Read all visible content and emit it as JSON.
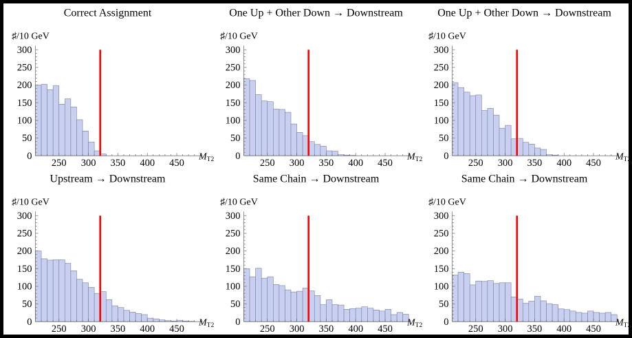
{
  "figure": {
    "background": "#ffffff",
    "frame_color": "#000000",
    "bar_fill": "#c9cfee",
    "bar_edge": "#767fa9",
    "marker_line_color": "#ff0000",
    "axis_color": "#666666",
    "text_color": "#000000",
    "y_axis_label": "♯/10 GeV",
    "x_axis_label_main": "M",
    "x_axis_label_sub": "T2",
    "y_ticks": [
      0,
      50,
      100,
      150,
      200,
      250,
      300
    ],
    "x_ticks": [
      250,
      300,
      350,
      400,
      450
    ],
    "x_range": [
      210,
      492
    ],
    "y_range": [
      0,
      300
    ],
    "minor_tick_step": 10,
    "marker_x": 320
  },
  "chart_data": [
    {
      "type": "bar",
      "title": "Correct Assignment",
      "xlabel": "M_T2",
      "ylabel": "♯/10 GeV",
      "bin_start": 210,
      "bin_width": 10,
      "values": [
        200,
        202,
        187,
        198,
        146,
        161,
        138,
        102,
        70,
        39,
        14,
        5
      ],
      "xlim": [
        210,
        492
      ],
      "ylim": [
        0,
        300
      ],
      "marker_line_x": 320
    },
    {
      "type": "bar",
      "title": "One Up + Other Down → Downstream",
      "xlabel": "M_T2",
      "ylabel": "♯/10 GeV",
      "bin_start": 210,
      "bin_width": 10,
      "values": [
        218,
        213,
        173,
        155,
        153,
        132,
        131,
        123,
        90,
        66,
        57,
        40,
        32,
        27,
        14,
        13,
        3,
        2,
        1
      ],
      "xlim": [
        210,
        492
      ],
      "ylim": [
        0,
        300
      ],
      "marker_line_x": 320
    },
    {
      "type": "bar",
      "title": "One Up + Other Down → Downstream",
      "xlabel": "M_T2",
      "ylabel": "♯/10 GeV",
      "bin_start": 210,
      "bin_width": 10,
      "values": [
        207,
        193,
        180,
        170,
        172,
        128,
        134,
        115,
        78,
        86,
        48,
        49,
        38,
        33,
        22,
        18,
        3,
        2
      ],
      "xlim": [
        210,
        492
      ],
      "ylim": [
        0,
        300
      ],
      "marker_line_x": 320
    },
    {
      "type": "bar",
      "title": "Upstream → Downstream",
      "xlabel": "M_T2",
      "ylabel": "♯/10 GeV",
      "bin_start": 210,
      "bin_width": 10,
      "values": [
        200,
        178,
        174,
        175,
        175,
        165,
        144,
        120,
        110,
        97,
        80,
        85,
        62,
        45,
        40,
        32,
        27,
        23,
        20,
        10,
        8,
        5,
        3,
        2,
        4,
        2,
        1
      ],
      "xlim": [
        210,
        492
      ],
      "ylim": [
        0,
        300
      ],
      "marker_line_x": 320
    },
    {
      "type": "bar",
      "title": "Same Chain → Downstream",
      "xlabel": "M_T2",
      "ylabel": "♯/10 GeV",
      "bin_start": 210,
      "bin_width": 10,
      "values": [
        150,
        127,
        151,
        123,
        127,
        105,
        102,
        90,
        84,
        86,
        95,
        87,
        74,
        48,
        62,
        48,
        47,
        35,
        37,
        38,
        42,
        38,
        33,
        30,
        35,
        20,
        26,
        21
      ],
      "xlim": [
        210,
        492
      ],
      "ylim": [
        0,
        300
      ],
      "marker_line_x": 320
    },
    {
      "type": "bar",
      "title": "Same Chain → Downstream",
      "xlabel": "M_T2",
      "ylabel": "♯/10 GeV",
      "bin_start": 210,
      "bin_width": 10,
      "values": [
        132,
        140,
        136,
        104,
        115,
        114,
        116,
        108,
        110,
        110,
        70,
        64,
        52,
        58,
        72,
        59,
        51,
        48,
        36,
        34,
        30,
        26,
        24,
        30,
        26,
        24,
        26,
        20
      ],
      "xlim": [
        210,
        492
      ],
      "ylim": [
        0,
        300
      ],
      "marker_line_x": 320
    }
  ]
}
